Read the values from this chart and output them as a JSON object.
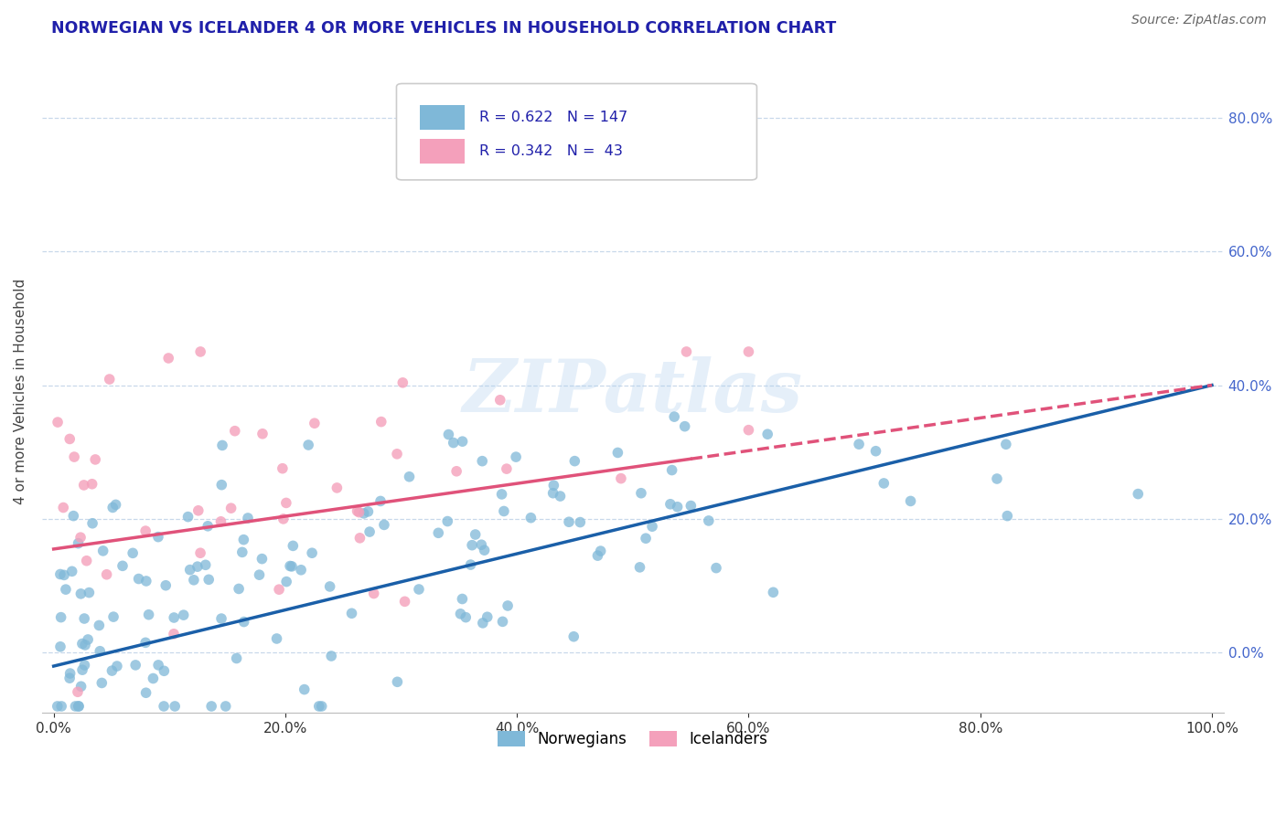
{
  "title": "NORWEGIAN VS ICELANDER 4 OR MORE VEHICLES IN HOUSEHOLD CORRELATION CHART",
  "source": "Source: ZipAtlas.com",
  "ylabel": "4 or more Vehicles in Household",
  "legend_labels": [
    "Norwegians",
    "Icelanders"
  ],
  "norwegian_R": 0.622,
  "norwegian_N": 147,
  "icelander_R": 0.342,
  "icelander_N": 43,
  "scatter_color_norwegian": "#7fb8d8",
  "scatter_color_icelander": "#f4a0bb",
  "line_color_norwegian": "#1a5fa8",
  "line_color_icelander": "#e0527a",
  "watermark": "ZIPatlas",
  "background_color": "#ffffff",
  "grid_color": "#c8d8ea",
  "title_color": "#2020aa",
  "right_tick_color": "#4466cc",
  "xlim": [
    -0.01,
    1.01
  ],
  "ylim": [
    -0.09,
    0.87
  ],
  "xticks": [
    0.0,
    0.2,
    0.4,
    0.6,
    0.8,
    1.0
  ],
  "yticks": [
    0.0,
    0.2,
    0.4,
    0.6,
    0.8
  ],
  "nor_line_x": [
    0.0,
    1.0
  ],
  "nor_line_y": [
    -0.02,
    0.4
  ],
  "ice_line_x": [
    0.0,
    1.0
  ],
  "ice_line_y": [
    0.155,
    0.4
  ],
  "ice_line_solid_end": 0.55
}
